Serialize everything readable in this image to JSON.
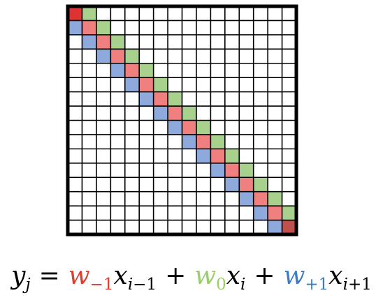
{
  "matrix": {
    "size": 16,
    "diagonals": [
      {
        "offset": -1,
        "weight": "w_-1",
        "color": "#8ea9dc"
      },
      {
        "offset": 0,
        "weight": "w_0",
        "color": "#f08080"
      },
      {
        "offset": 1,
        "weight": "w_+1",
        "color": "#a9d18e"
      }
    ],
    "first_diagonal_cell_color": "#dd3333",
    "last_diagonal_cell_color": "#c0504d",
    "grid_color": "#000000",
    "cell_fill": "#ffffff"
  },
  "equation": {
    "lhs_var": "y",
    "lhs_sub": "j",
    "equals": "=",
    "plus": "+",
    "term1": {
      "w": "w",
      "w_sub": "−1",
      "x": "x",
      "x_sub_var": "i",
      "x_sub_op": "−1",
      "color": "#e33b2f"
    },
    "term2": {
      "w": "w",
      "w_sub": "0",
      "x": "x",
      "x_sub_var": "i",
      "color": "#9bcd6c"
    },
    "term3": {
      "w": "w",
      "w_sub": "+1",
      "x": "x",
      "x_sub_var": "i",
      "x_sub_op": "+1",
      "color": "#3d7cc4"
    }
  }
}
